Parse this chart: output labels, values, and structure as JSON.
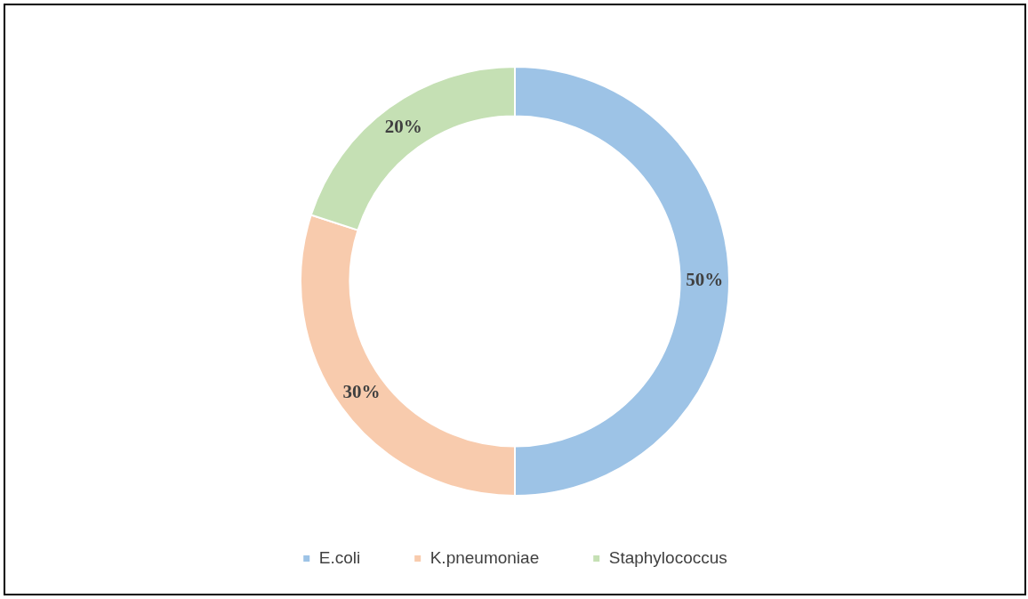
{
  "chart_data": {
    "type": "donut",
    "categories": [
      "E.coli",
      "K.pneumoniae",
      "Staphylococcus"
    ],
    "values": [
      50,
      30,
      20
    ],
    "colors": [
      "#9dc3e6",
      "#f8cbad",
      "#c5e0b4"
    ],
    "value_labels": [
      "50%",
      "30%",
      "20%"
    ],
    "legend": "bottom"
  }
}
